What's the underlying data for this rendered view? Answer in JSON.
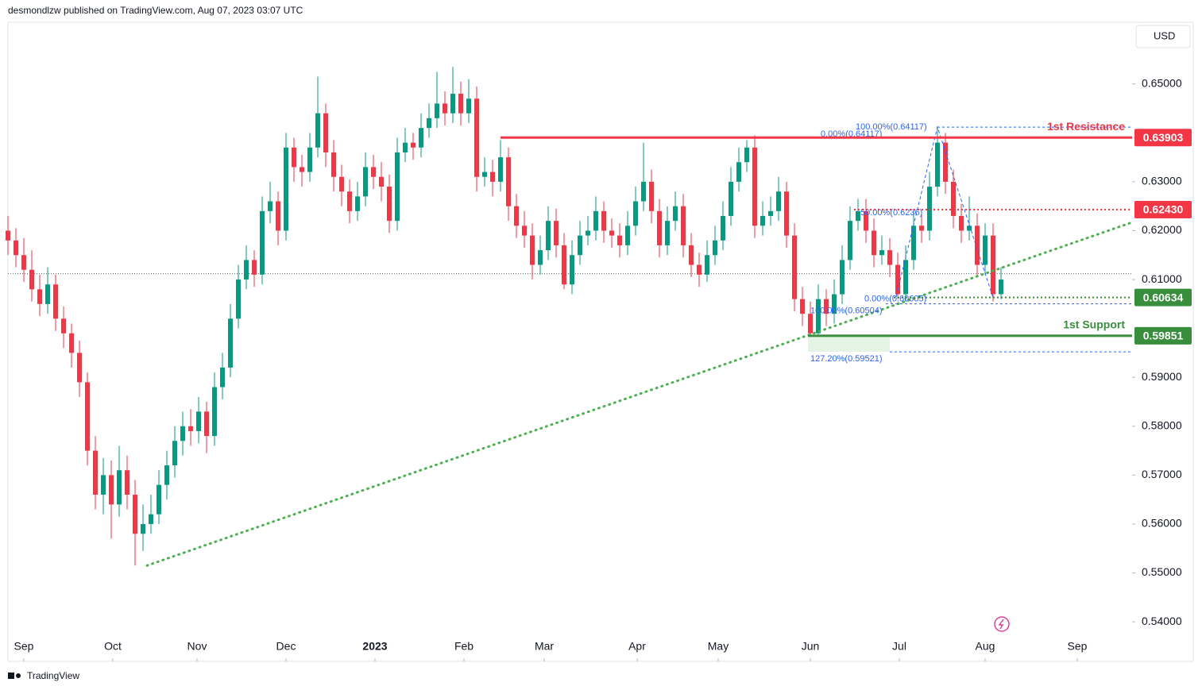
{
  "header": "desmondlzw published on TradingView.com, Aug 07, 2023 03:07 UTC",
  "footer": "TradingView",
  "chart_data": {
    "type": "candlestick",
    "currency": "USD",
    "up_color": "#089981",
    "down_color": "#f23645",
    "xlim": [
      0,
      141.5
    ],
    "xticks": [
      {
        "value": 2,
        "label": "Sep"
      },
      {
        "value": 13.2,
        "label": "Oct"
      },
      {
        "value": 23.8,
        "label": "Nov"
      },
      {
        "value": 35,
        "label": "Dec"
      },
      {
        "value": 46.2,
        "label": "2023"
      },
      {
        "value": 57.4,
        "label": "Feb"
      },
      {
        "value": 67.5,
        "label": "Mar"
      },
      {
        "value": 79.2,
        "label": "Apr"
      },
      {
        "value": 89.4,
        "label": "May"
      },
      {
        "value": 101,
        "label": "Jun"
      },
      {
        "value": 112.2,
        "label": "Jul"
      },
      {
        "value": 123,
        "label": "Aug"
      },
      {
        "value": 134.6,
        "label": "Sep"
      }
    ],
    "ylim": [
      0.5319,
      0.6623
    ],
    "yticks": [
      {
        "value": 0.54,
        "label": "0.54000"
      },
      {
        "value": 0.55,
        "label": "0.55000"
      },
      {
        "value": 0.56,
        "label": "0.56000"
      },
      {
        "value": 0.57,
        "label": "0.57000"
      },
      {
        "value": 0.58,
        "label": "0.58000"
      },
      {
        "value": 0.59,
        "label": "0.59000"
      },
      {
        "value": 0.61,
        "label": "0.61000"
      },
      {
        "value": 0.62,
        "label": "0.62000"
      },
      {
        "value": 0.63,
        "label": "0.63000"
      },
      {
        "value": 0.65,
        "label": "0.65000"
      }
    ],
    "grid": false,
    "price_line": 0.6112,
    "ohlc": [
      [
        0.62,
        0.623,
        0.615,
        0.618
      ],
      [
        0.618,
        0.6205,
        0.6125,
        0.615
      ],
      [
        0.615,
        0.6185,
        0.6095,
        0.612
      ],
      [
        0.612,
        0.616,
        0.6055,
        0.608
      ],
      [
        0.608,
        0.611,
        0.6025,
        0.605
      ],
      [
        0.605,
        0.6125,
        0.603,
        0.609
      ],
      [
        0.609,
        0.611,
        0.5995,
        0.602
      ],
      [
        0.602,
        0.6045,
        0.596,
        0.599
      ],
      [
        0.599,
        0.601,
        0.592,
        0.595
      ],
      [
        0.595,
        0.5975,
        0.586,
        0.589
      ],
      [
        0.589,
        0.591,
        0.572,
        0.575
      ],
      [
        0.575,
        0.578,
        0.563,
        0.566
      ],
      [
        0.566,
        0.5735,
        0.562,
        0.57
      ],
      [
        0.57,
        0.573,
        0.557,
        0.564
      ],
      [
        0.564,
        0.576,
        0.5615,
        0.571
      ],
      [
        0.571,
        0.574,
        0.563,
        0.566
      ],
      [
        0.566,
        0.569,
        0.5515,
        0.558
      ],
      [
        0.558,
        0.564,
        0.5545,
        0.56
      ],
      [
        0.56,
        0.566,
        0.558,
        0.562
      ],
      [
        0.562,
        0.571,
        0.56,
        0.568
      ],
      [
        0.568,
        0.575,
        0.565,
        0.572
      ],
      [
        0.572,
        0.58,
        0.5695,
        0.577
      ],
      [
        0.577,
        0.583,
        0.574,
        0.58
      ],
      [
        0.58,
        0.5835,
        0.576,
        0.579
      ],
      [
        0.579,
        0.586,
        0.5765,
        0.583
      ],
      [
        0.583,
        0.585,
        0.5745,
        0.578
      ],
      [
        0.578,
        0.591,
        0.576,
        0.588
      ],
      [
        0.588,
        0.595,
        0.5855,
        0.592
      ],
      [
        0.592,
        0.605,
        0.59,
        0.602
      ],
      [
        0.602,
        0.613,
        0.6,
        0.61
      ],
      [
        0.61,
        0.617,
        0.608,
        0.614
      ],
      [
        0.614,
        0.616,
        0.6085,
        0.611
      ],
      [
        0.611,
        0.627,
        0.609,
        0.624
      ],
      [
        0.624,
        0.63,
        0.6215,
        0.626
      ],
      [
        0.626,
        0.628,
        0.617,
        0.62
      ],
      [
        0.62,
        0.64,
        0.618,
        0.637
      ],
      [
        0.637,
        0.639,
        0.63,
        0.633
      ],
      [
        0.633,
        0.6355,
        0.629,
        0.632
      ],
      [
        0.632,
        0.64,
        0.63,
        0.637
      ],
      [
        0.637,
        0.6515,
        0.635,
        0.644
      ],
      [
        0.644,
        0.646,
        0.633,
        0.636
      ],
      [
        0.636,
        0.6385,
        0.628,
        0.631
      ],
      [
        0.631,
        0.6335,
        0.625,
        0.628
      ],
      [
        0.628,
        0.6305,
        0.6215,
        0.624
      ],
      [
        0.624,
        0.63,
        0.622,
        0.627
      ],
      [
        0.627,
        0.636,
        0.625,
        0.633
      ],
      [
        0.633,
        0.6355,
        0.6285,
        0.631
      ],
      [
        0.631,
        0.634,
        0.626,
        0.629
      ],
      [
        0.629,
        0.6315,
        0.6195,
        0.622
      ],
      [
        0.622,
        0.639,
        0.62,
        0.636
      ],
      [
        0.636,
        0.641,
        0.634,
        0.638
      ],
      [
        0.638,
        0.64,
        0.6345,
        0.637
      ],
      [
        0.637,
        0.644,
        0.635,
        0.641
      ],
      [
        0.641,
        0.646,
        0.639,
        0.643
      ],
      [
        0.643,
        0.6525,
        0.641,
        0.646
      ],
      [
        0.646,
        0.6485,
        0.6415,
        0.644
      ],
      [
        0.644,
        0.6535,
        0.642,
        0.648
      ],
      [
        0.648,
        0.6505,
        0.6415,
        0.644
      ],
      [
        0.644,
        0.651,
        0.642,
        0.647
      ],
      [
        0.647,
        0.6495,
        0.628,
        0.631
      ],
      [
        0.631,
        0.635,
        0.629,
        0.632
      ],
      [
        0.632,
        0.6345,
        0.627,
        0.63
      ],
      [
        0.63,
        0.6385,
        0.628,
        0.635
      ],
      [
        0.635,
        0.637,
        0.622,
        0.625
      ],
      [
        0.625,
        0.6275,
        0.6185,
        0.621
      ],
      [
        0.621,
        0.624,
        0.6165,
        0.619
      ],
      [
        0.619,
        0.6215,
        0.61,
        0.613
      ],
      [
        0.613,
        0.619,
        0.611,
        0.616
      ],
      [
        0.616,
        0.625,
        0.614,
        0.622
      ],
      [
        0.622,
        0.6245,
        0.6145,
        0.617
      ],
      [
        0.617,
        0.6195,
        0.608,
        0.609
      ],
      [
        0.609,
        0.618,
        0.607,
        0.615
      ],
      [
        0.615,
        0.622,
        0.613,
        0.619
      ],
      [
        0.619,
        0.623,
        0.617,
        0.62
      ],
      [
        0.62,
        0.627,
        0.618,
        0.624
      ],
      [
        0.624,
        0.626,
        0.6175,
        0.62
      ],
      [
        0.62,
        0.6225,
        0.6165,
        0.619
      ],
      [
        0.619,
        0.6215,
        0.6145,
        0.617
      ],
      [
        0.617,
        0.624,
        0.615,
        0.621
      ],
      [
        0.621,
        0.629,
        0.619,
        0.626
      ],
      [
        0.626,
        0.638,
        0.624,
        0.63
      ],
      [
        0.63,
        0.6325,
        0.6215,
        0.624
      ],
      [
        0.624,
        0.6265,
        0.6145,
        0.617
      ],
      [
        0.617,
        0.625,
        0.615,
        0.622
      ],
      [
        0.622,
        0.628,
        0.62,
        0.625
      ],
      [
        0.625,
        0.6275,
        0.6145,
        0.617
      ],
      [
        0.617,
        0.6195,
        0.6105,
        0.613
      ],
      [
        0.613,
        0.6155,
        0.6085,
        0.611
      ],
      [
        0.611,
        0.618,
        0.6095,
        0.615
      ],
      [
        0.615,
        0.621,
        0.613,
        0.618
      ],
      [
        0.618,
        0.626,
        0.616,
        0.623
      ],
      [
        0.623,
        0.633,
        0.621,
        0.63
      ],
      [
        0.63,
        0.637,
        0.628,
        0.634
      ],
      [
        0.634,
        0.6385,
        0.632,
        0.637
      ],
      [
        0.637,
        0.6395,
        0.6185,
        0.621
      ],
      [
        0.621,
        0.626,
        0.619,
        0.623
      ],
      [
        0.623,
        0.627,
        0.621,
        0.624
      ],
      [
        0.624,
        0.631,
        0.622,
        0.628
      ],
      [
        0.628,
        0.63,
        0.6165,
        0.619
      ],
      [
        0.619,
        0.6215,
        0.6035,
        0.606
      ],
      [
        0.606,
        0.6085,
        0.6005,
        0.603
      ],
      [
        0.603,
        0.6055,
        0.5985,
        0.599
      ],
      [
        0.599,
        0.609,
        0.5985,
        0.606
      ],
      [
        0.606,
        0.608,
        0.6005,
        0.603
      ],
      [
        0.603,
        0.61,
        0.601,
        0.607
      ],
      [
        0.607,
        0.617,
        0.605,
        0.614
      ],
      [
        0.614,
        0.625,
        0.612,
        0.622
      ],
      [
        0.622,
        0.6265,
        0.62,
        0.624
      ],
      [
        0.624,
        0.6265,
        0.6175,
        0.62
      ],
      [
        0.62,
        0.6225,
        0.6125,
        0.615
      ],
      [
        0.615,
        0.619,
        0.613,
        0.616
      ],
      [
        0.616,
        0.6185,
        0.6105,
        0.613
      ],
      [
        0.613,
        0.6155,
        0.606,
        0.607
      ],
      [
        0.607,
        0.617,
        0.6055,
        0.614
      ],
      [
        0.614,
        0.624,
        0.612,
        0.621
      ],
      [
        0.621,
        0.6235,
        0.6175,
        0.62
      ],
      [
        0.62,
        0.632,
        0.618,
        0.629
      ],
      [
        0.629,
        0.6412,
        0.627,
        0.638
      ],
      [
        0.638,
        0.64,
        0.6275,
        0.63
      ],
      [
        0.63,
        0.6325,
        0.6205,
        0.623
      ],
      [
        0.623,
        0.6255,
        0.6175,
        0.62
      ],
      [
        0.62,
        0.627,
        0.618,
        0.621
      ],
      [
        0.621,
        0.6235,
        0.6105,
        0.613
      ],
      [
        0.613,
        0.6215,
        0.611,
        0.619
      ],
      [
        0.619,
        0.6215,
        0.6055,
        0.607
      ],
      [
        0.607,
        0.6125,
        0.606,
        0.61
      ]
    ],
    "trendline": {
      "x": [
        17.5,
        141.5
      ],
      "values": [
        0.5515,
        0.6217
      ],
      "color": "#4caf50"
    },
    "zigzag": {
      "x": [
        111.8,
        117,
        124
      ],
      "values": [
        0.6065,
        0.6412,
        0.6063
      ],
      "color": "#2962ff"
    },
    "support_zone": {
      "x": [
        100.7,
        111
      ],
      "values": [
        0.59851,
        0.59521
      ],
      "color": "#e3f3e4"
    },
    "levels": [
      {
        "value": 0.63903,
        "label": "0.63903",
        "color": "#f23645",
        "style": "solid",
        "x_start": 62,
        "annotation": "1st Resistance"
      },
      {
        "value": 0.6243,
        "label": "0.62430",
        "color": "#f23645",
        "style": "dotted",
        "x_start": 106.5
      },
      {
        "value": 0.60634,
        "label": "0.60634",
        "color": "#388e3c",
        "style": "dotted",
        "x_start": 111.5
      },
      {
        "value": 0.59851,
        "label": "0.59851",
        "color": "#388e3c",
        "style": "solid",
        "x_start": 100.7,
        "annotation": "1st Support"
      }
    ],
    "fibs": [
      {
        "label": "100.00%(0.64117)",
        "value": 0.64117,
        "text_x": 106.7,
        "line": [
          117,
          141.5
        ],
        "pos": "center"
      },
      {
        "label": "0.00%(0.64117)",
        "value": 0.64117,
        "text_x": 102.3,
        "pos": "below"
      },
      {
        "label": "50.00%(0.6236)",
        "value": 0.6236,
        "text_x": 107.3,
        "pos": "center"
      },
      {
        "label": "0.00%(0.60605)",
        "value": 0.60605,
        "text_x": 107.8,
        "pos": "center"
      },
      {
        "label": "100.00%(0.60504)",
        "value": 0.60504,
        "text_x": 101,
        "line": [
          110.5,
          141.5
        ],
        "pos": "below"
      },
      {
        "label": "127.20%(0.59521)",
        "value": 0.59521,
        "text_x": 101,
        "line": [
          111,
          141.5
        ],
        "pos": "below"
      }
    ]
  }
}
